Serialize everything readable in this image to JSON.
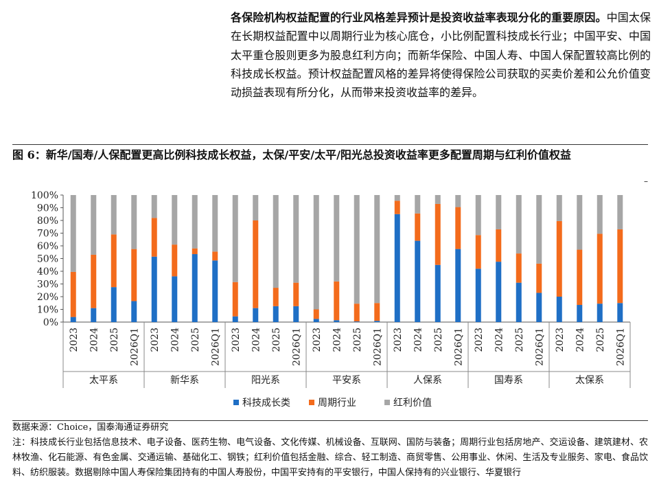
{
  "paragraph": {
    "bold": "各保险机构权益配置的行业风格差异预计是投资收益率表现分化的重要原因。",
    "text": "中国太保在长期权益配置中以周期行业为核心底仓，小比例配置科技成长行业；中国平安、中国太平重仓股则更多为股息红利方向；而新华保险、中国人寿、中国人保配置较高比例的科技成长权益。预计权益配置风格的差异将使得保险公司获取的买卖价差和公允价值变动损益表现有所分化，从而带来投资收益率的差异。"
  },
  "figure_title": "图 6：新华/国寿/人保配置更高比例科技成长权益，太保/平安/太平/阳光总投资收益率更多配置周期与红利价值权益",
  "dash": "–",
  "source": "数据来源：Choice，国泰海通证券研究",
  "note": "注：科技成长行业包括信息技术、电子设备、医药生物、电气设备、文化传媒、机械设备、互联网、国防与装备；周期行业包括房地产、交运设备、建筑建材、农林牧渔、化石能源、有色金属、交通运输、基础化工、钢铁；红利价值包括金融、综合、轻工制造、商贸零售、公用事业、休闲、生活及专业服务、家电、食品饮料、纺织服装。数据剔除中国人寿保险集团持有的中国人寿股份，中国平安持有的平安银行，中国人保持有的兴业银行、华夏银行",
  "chart_data": {
    "type": "bar",
    "stacked": true,
    "ylim": [
      0,
      100
    ],
    "yticks": [
      "0%",
      "10%",
      "20%",
      "30%",
      "40%",
      "50%",
      "60%",
      "70%",
      "80%",
      "90%",
      "100%"
    ],
    "periods": [
      "2023",
      "2024",
      "2025",
      "2026Q1"
    ],
    "groups": [
      "太平系",
      "新华系",
      "阳光系",
      "平安系",
      "人保系",
      "国寿系",
      "太保系"
    ],
    "series": [
      {
        "name": "科技成长类",
        "color": "#1f6fc5",
        "values": [
          4,
          11,
          27.5,
          16.5,
          51.5,
          36,
          53.5,
          48.5,
          4.5,
          11,
          12.5,
          12.5,
          2.5,
          1.5,
          0.5,
          1,
          85,
          64,
          45,
          57.5,
          42,
          47.5,
          31,
          23,
          20,
          13.5,
          14.5,
          15
        ]
      },
      {
        "name": "周期行业",
        "color": "#f36b1c",
        "values": [
          35.5,
          42,
          41.5,
          41,
          30.5,
          25,
          4.5,
          7,
          27,
          69,
          14.5,
          18.5,
          7.5,
          30.5,
          14,
          14,
          10.5,
          21.5,
          48,
          33,
          26.5,
          25.5,
          23,
          23,
          59.5,
          43.5,
          55,
          58
        ]
      },
      {
        "name": "红利价值",
        "color": "#a6a6a6",
        "values": [
          60.5,
          47,
          31,
          42.5,
          18,
          39,
          42,
          44.5,
          68.5,
          20,
          73,
          69,
          90,
          68,
          85.5,
          85,
          4.5,
          14.5,
          7,
          9.5,
          31.5,
          27,
          46,
          54,
          20.5,
          43,
          30.5,
          27
        ]
      }
    ]
  }
}
